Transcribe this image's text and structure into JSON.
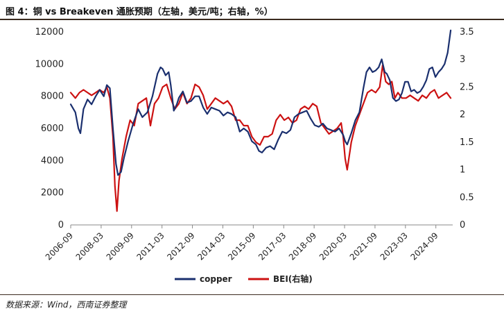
{
  "title": "图 4：铜 vs Breakeven 通胀预期（左轴，美元/吨；右轴，%）",
  "source": "数据来源：Wind，西南证券整理",
  "colors": {
    "copper": "#1a2f6e",
    "bei": "#cc1111",
    "axis": "#888888"
  },
  "chart_data": {
    "type": "line",
    "title": "图 4：铜 vs Breakeven 通胀预期（左轴，美元/吨；右轴，%）",
    "x_tick_labels": [
      "2006-09",
      "2008-03",
      "2009-09",
      "2011-03",
      "2012-09",
      "2014-03",
      "2015-09",
      "2017-03",
      "2018-09",
      "2020-03",
      "2021-09",
      "2023-03",
      "2024-09"
    ],
    "left_axis": {
      "label": "美元/吨",
      "range": [
        0,
        12000
      ],
      "ticks": [
        "0",
        "2000",
        "4000",
        "6000",
        "8000",
        "10000",
        "12000"
      ]
    },
    "right_axis": {
      "label": "%",
      "range": [
        0,
        3.5
      ],
      "ticks": [
        "0",
        "0.5",
        "1",
        "1.5",
        "2",
        "2.5",
        "3",
        "3.5"
      ]
    },
    "x_range": [
      2006.67,
      2025.5
    ],
    "series": [
      {
        "name": "copper",
        "axis": "left",
        "x": [
          2006.67,
          2006.9,
          2007.05,
          2007.15,
          2007.3,
          2007.5,
          2007.7,
          2007.9,
          2008.1,
          2008.3,
          2008.45,
          2008.6,
          2008.75,
          2008.9,
          2009.0,
          2009.15,
          2009.3,
          2009.5,
          2009.75,
          2010.0,
          2010.2,
          2010.45,
          2010.7,
          2010.95,
          2011.1,
          2011.2,
          2011.35,
          2011.5,
          2011.6,
          2011.75,
          2011.9,
          2012.0,
          2012.2,
          2012.4,
          2012.6,
          2012.8,
          2013.0,
          2013.2,
          2013.4,
          2013.6,
          2013.8,
          2014.0,
          2014.2,
          2014.4,
          2014.6,
          2014.8,
          2015.0,
          2015.2,
          2015.4,
          2015.6,
          2015.8,
          2015.95,
          2016.1,
          2016.3,
          2016.5,
          2016.7,
          2016.9,
          2017.1,
          2017.3,
          2017.5,
          2017.7,
          2017.9,
          2018.1,
          2018.3,
          2018.5,
          2018.7,
          2018.9,
          2019.1,
          2019.3,
          2019.5,
          2019.7,
          2019.9,
          2020.1,
          2020.2,
          2020.3,
          2020.5,
          2020.7,
          2020.9,
          2021.1,
          2021.25,
          2021.4,
          2021.55,
          2021.7,
          2021.85,
          2022.0,
          2022.15,
          2022.25,
          2022.4,
          2022.55,
          2022.7,
          2022.85,
          2023.0,
          2023.15,
          2023.3,
          2023.45,
          2023.6,
          2023.75,
          2023.9,
          2024.05,
          2024.2,
          2024.35,
          2024.5,
          2024.65,
          2024.8,
          2024.95,
          2025.1,
          2025.25,
          2025.4
        ],
        "values": [
          7500,
          7000,
          6000,
          5700,
          7200,
          7800,
          7500,
          8000,
          8400,
          8000,
          8700,
          8500,
          6000,
          3800,
          3100,
          3300,
          4200,
          5200,
          6300,
          7200,
          6700,
          7000,
          8000,
          9400,
          9800,
          9700,
          9300,
          9500,
          8700,
          7100,
          7500,
          7900,
          8300,
          7600,
          7700,
          8000,
          8000,
          7300,
          6900,
          7300,
          7200,
          7100,
          6800,
          7000,
          6900,
          6700,
          5800,
          6000,
          5800,
          5200,
          5000,
          4600,
          4500,
          4800,
          4900,
          4700,
          5300,
          5800,
          5700,
          5900,
          6700,
          6900,
          7000,
          7100,
          6600,
          6200,
          6100,
          6300,
          6000,
          5900,
          5800,
          6000,
          5600,
          5200,
          5000,
          5700,
          6500,
          7000,
          8500,
          9500,
          9800,
          9500,
          9600,
          9800,
          10300,
          9500,
          9400,
          9000,
          7900,
          7700,
          7800,
          8200,
          8900,
          8900,
          8300,
          8400,
          8200,
          8300,
          8600,
          9000,
          9700,
          9800,
          9200,
          9500,
          9700,
          10000,
          10700,
          12100
        ]
      },
      {
        "name": "BEI(右轴)",
        "axis": "right",
        "x": [
          2006.67,
          2006.9,
          2007.1,
          2007.3,
          2007.5,
          2007.7,
          2007.9,
          2008.1,
          2008.3,
          2008.45,
          2008.6,
          2008.75,
          2008.85,
          2008.95,
          2009.05,
          2009.2,
          2009.4,
          2009.6,
          2009.8,
          2010.0,
          2010.2,
          2010.4,
          2010.6,
          2010.8,
          2011.0,
          2011.2,
          2011.4,
          2011.6,
          2011.8,
          2012.0,
          2012.2,
          2012.4,
          2012.6,
          2012.8,
          2013.0,
          2013.2,
          2013.4,
          2013.6,
          2013.8,
          2014.0,
          2014.2,
          2014.4,
          2014.6,
          2014.8,
          2015.0,
          2015.2,
          2015.4,
          2015.6,
          2015.8,
          2016.0,
          2016.2,
          2016.4,
          2016.6,
          2016.8,
          2017.0,
          2017.2,
          2017.4,
          2017.6,
          2017.8,
          2018.0,
          2018.2,
          2018.4,
          2018.6,
          2018.8,
          2019.0,
          2019.2,
          2019.4,
          2019.6,
          2019.8,
          2020.0,
          2020.1,
          2020.2,
          2020.3,
          2020.5,
          2020.7,
          2020.9,
          2021.1,
          2021.3,
          2021.5,
          2021.7,
          2021.9,
          2022.05,
          2022.2,
          2022.35,
          2022.5,
          2022.65,
          2022.8,
          2023.0,
          2023.2,
          2023.4,
          2023.6,
          2023.8,
          2024.0,
          2024.2,
          2024.4,
          2024.6,
          2024.8,
          2025.0,
          2025.2,
          2025.4
        ],
        "values": [
          2.4,
          2.3,
          2.4,
          2.45,
          2.4,
          2.35,
          2.4,
          2.45,
          2.4,
          2.5,
          2.3,
          1.6,
          0.7,
          0.25,
          0.8,
          1.2,
          1.6,
          1.9,
          1.8,
          2.2,
          2.25,
          2.3,
          1.8,
          2.2,
          2.3,
          2.5,
          2.55,
          2.3,
          2.1,
          2.2,
          2.4,
          2.2,
          2.3,
          2.55,
          2.5,
          2.35,
          2.1,
          2.2,
          2.3,
          2.25,
          2.2,
          2.25,
          2.15,
          1.9,
          1.9,
          1.8,
          1.8,
          1.6,
          1.5,
          1.45,
          1.6,
          1.6,
          1.65,
          1.9,
          2.0,
          1.9,
          1.95,
          1.85,
          1.9,
          2.1,
          2.15,
          2.1,
          2.2,
          2.15,
          1.85,
          1.75,
          1.65,
          1.7,
          1.75,
          1.85,
          1.6,
          1.2,
          1.0,
          1.5,
          1.8,
          2.0,
          2.2,
          2.4,
          2.45,
          2.4,
          2.5,
          2.9,
          2.6,
          2.55,
          2.6,
          2.3,
          2.4,
          2.3,
          2.3,
          2.35,
          2.3,
          2.25,
          2.35,
          2.3,
          2.4,
          2.45,
          2.3,
          2.35,
          2.4,
          2.3
        ]
      }
    ],
    "legend": [
      "copper",
      "BEI(右轴)"
    ],
    "legend_position": "bottom-center"
  }
}
